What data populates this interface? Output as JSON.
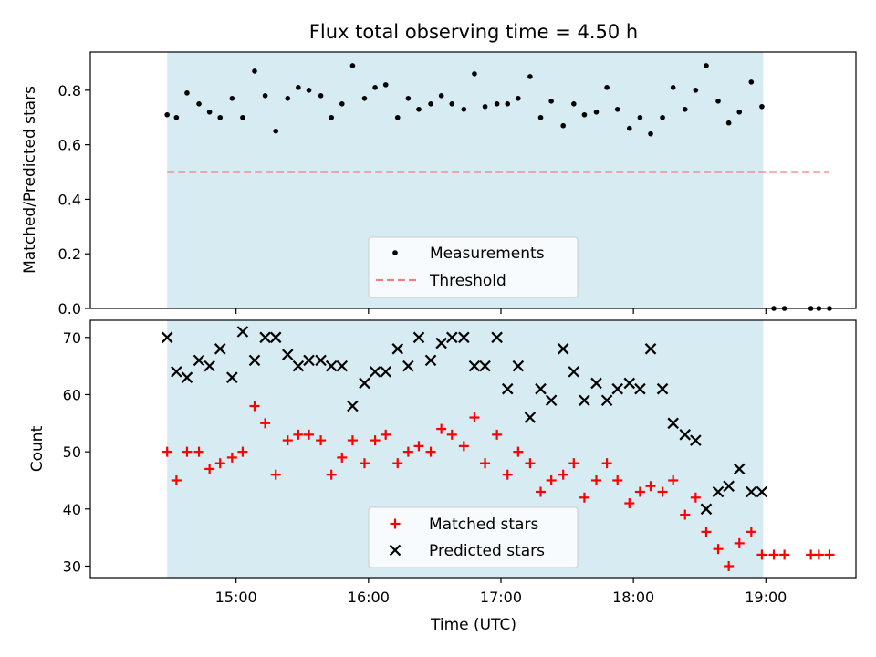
{
  "chart_data": {
    "type": "scatter",
    "title": "Flux total observing time = 4.50 h",
    "xlabel": "Time (UTC)",
    "x_ticks": [
      "15:00",
      "16:00",
      "17:00",
      "18:00",
      "19:00"
    ],
    "x_tick_hours": [
      15,
      16,
      17,
      18,
      19
    ],
    "xlim_hours": [
      13.9,
      19.68
    ],
    "observing_window_hours": [
      14.48,
      18.98
    ],
    "window_color": "#add8e6",
    "panels": [
      {
        "ylabel": "Matched/Predicted stars",
        "ylim": [
          0.0,
          0.94
        ],
        "yticks": [
          "0.0",
          "0.2",
          "0.4",
          "0.6",
          "0.8"
        ],
        "ytick_values": [
          0.0,
          0.2,
          0.4,
          0.6,
          0.8
        ],
        "legend_position": "lower center",
        "series": [
          {
            "name": "Measurements",
            "marker": "dot",
            "color": "#000000",
            "x_hours": [
              14.48,
              14.55,
              14.63,
              14.72,
              14.8,
              14.88,
              14.97,
              15.05,
              15.14,
              15.22,
              15.3,
              15.39,
              15.47,
              15.55,
              15.64,
              15.72,
              15.8,
              15.88,
              15.97,
              16.05,
              16.13,
              16.22,
              16.3,
              16.38,
              16.47,
              16.55,
              16.63,
              16.72,
              16.8,
              16.88,
              16.97,
              17.05,
              17.13,
              17.22,
              17.3,
              17.38,
              17.47,
              17.55,
              17.63,
              17.72,
              17.8,
              17.88,
              17.97,
              18.05,
              18.13,
              18.22,
              18.3,
              18.39,
              18.47,
              18.55,
              18.64,
              18.72,
              18.8,
              18.89,
              18.97,
              19.06,
              19.14,
              19.34,
              19.4,
              19.48
            ],
            "values": [
              0.71,
              0.7,
              0.79,
              0.75,
              0.72,
              0.7,
              0.77,
              0.7,
              0.87,
              0.78,
              0.65,
              0.77,
              0.81,
              0.8,
              0.78,
              0.7,
              0.75,
              0.89,
              0.77,
              0.81,
              0.82,
              0.7,
              0.77,
              0.73,
              0.75,
              0.78,
              0.75,
              0.73,
              0.86,
              0.74,
              0.75,
              0.75,
              0.77,
              0.85,
              0.7,
              0.76,
              0.67,
              0.75,
              0.71,
              0.72,
              0.81,
              0.73,
              0.66,
              0.7,
              0.64,
              0.7,
              0.81,
              0.73,
              0.8,
              0.89,
              0.76,
              0.68,
              0.72,
              0.83,
              0.74,
              0.0,
              0.0,
              0.0,
              0.0,
              0.0
            ]
          },
          {
            "name": "Threshold",
            "marker": "dashed-line",
            "color": "#f08080",
            "x_hours": [
              14.48,
              19.48
            ],
            "values": [
              0.5,
              0.5
            ]
          }
        ]
      },
      {
        "ylabel": "Count",
        "ylim": [
          28,
          73
        ],
        "yticks": [
          "30",
          "40",
          "50",
          "60",
          "70"
        ],
        "ytick_values": [
          30,
          40,
          50,
          60,
          70
        ],
        "legend_position": "lower center",
        "series": [
          {
            "name": "Matched stars",
            "marker": "plus",
            "color": "#ff0000",
            "x_hours": [
              14.48,
              14.55,
              14.63,
              14.72,
              14.8,
              14.88,
              14.97,
              15.05,
              15.14,
              15.22,
              15.3,
              15.39,
              15.47,
              15.55,
              15.64,
              15.72,
              15.8,
              15.88,
              15.97,
              16.05,
              16.13,
              16.22,
              16.3,
              16.38,
              16.47,
              16.55,
              16.63,
              16.72,
              16.8,
              16.88,
              16.97,
              17.05,
              17.13,
              17.22,
              17.3,
              17.38,
              17.47,
              17.55,
              17.63,
              17.72,
              17.8,
              17.88,
              17.97,
              18.05,
              18.13,
              18.22,
              18.3,
              18.39,
              18.47,
              18.55,
              18.64,
              18.72,
              18.8,
              18.89,
              18.97,
              19.06,
              19.14,
              19.34,
              19.4,
              19.48
            ],
            "values": [
              50,
              45,
              50,
              50,
              47,
              48,
              49,
              50,
              58,
              55,
              46,
              52,
              53,
              53,
              52,
              46,
              49,
              52,
              48,
              52,
              53,
              48,
              50,
              51,
              50,
              54,
              53,
              51,
              56,
              48,
              53,
              46,
              50,
              48,
              43,
              45,
              46,
              48,
              42,
              45,
              48,
              45,
              41,
              43,
              44,
              43,
              45,
              39,
              42,
              36,
              33,
              30,
              34,
              36,
              32,
              32,
              32,
              32,
              32,
              32
            ]
          },
          {
            "name": "Predicted stars",
            "marker": "x",
            "color": "#000000",
            "x_hours": [
              14.48,
              14.55,
              14.63,
              14.72,
              14.8,
              14.88,
              14.97,
              15.05,
              15.14,
              15.22,
              15.3,
              15.39,
              15.47,
              15.55,
              15.64,
              15.72,
              15.8,
              15.88,
              15.97,
              16.05,
              16.13,
              16.22,
              16.3,
              16.38,
              16.47,
              16.55,
              16.63,
              16.72,
              16.8,
              16.88,
              16.97,
              17.05,
              17.13,
              17.22,
              17.3,
              17.38,
              17.47,
              17.55,
              17.63,
              17.72,
              17.8,
              17.88,
              17.97,
              18.05,
              18.13,
              18.22,
              18.3,
              18.39,
              18.47,
              18.55,
              18.64,
              18.72,
              18.8,
              18.89,
              18.97
            ],
            "values": [
              70,
              64,
              63,
              66,
              65,
              68,
              63,
              71,
              66,
              70,
              70,
              67,
              65,
              66,
              66,
              65,
              65,
              58,
              62,
              64,
              64,
              68,
              65,
              70,
              66,
              69,
              70,
              70,
              65,
              65,
              70,
              61,
              65,
              56,
              61,
              59,
              68,
              64,
              59,
              62,
              59,
              61,
              62,
              61,
              68,
              61,
              55,
              53,
              52,
              40,
              43,
              44,
              47,
              43,
              43
            ]
          }
        ]
      }
    ]
  }
}
